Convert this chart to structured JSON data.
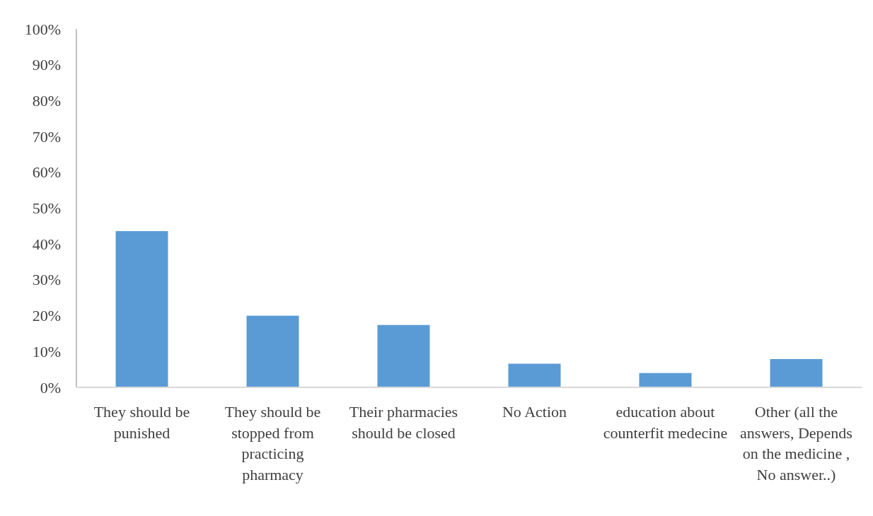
{
  "chart_data": {
    "type": "bar",
    "categories": [
      "They should be punished",
      "They should be stopped from practicing pharmacy",
      "Their pharmacies should be closed",
      "No Action",
      "education about counterfit medecine",
      "Other (all the answers, Depends on the medicine , No answer..)"
    ],
    "values": [
      43.6,
      20,
      17.4,
      6.6,
      4,
      7.9
    ],
    "color": "#5b9bd5",
    "ylim": [
      0,
      100
    ],
    "yticks": [
      {
        "value": 0,
        "label": "0%"
      },
      {
        "value": 10,
        "label": "10%"
      },
      {
        "value": 20,
        "label": "20%"
      },
      {
        "value": 30,
        "label": "30%"
      },
      {
        "value": 40,
        "label": "40%"
      },
      {
        "value": 50,
        "label": "50%"
      },
      {
        "value": 60,
        "label": "60%"
      },
      {
        "value": 70,
        "label": "70%"
      },
      {
        "value": 80,
        "label": "80%"
      },
      {
        "value": 90,
        "label": "90%"
      },
      {
        "value": 100,
        "label": "100%"
      }
    ]
  }
}
